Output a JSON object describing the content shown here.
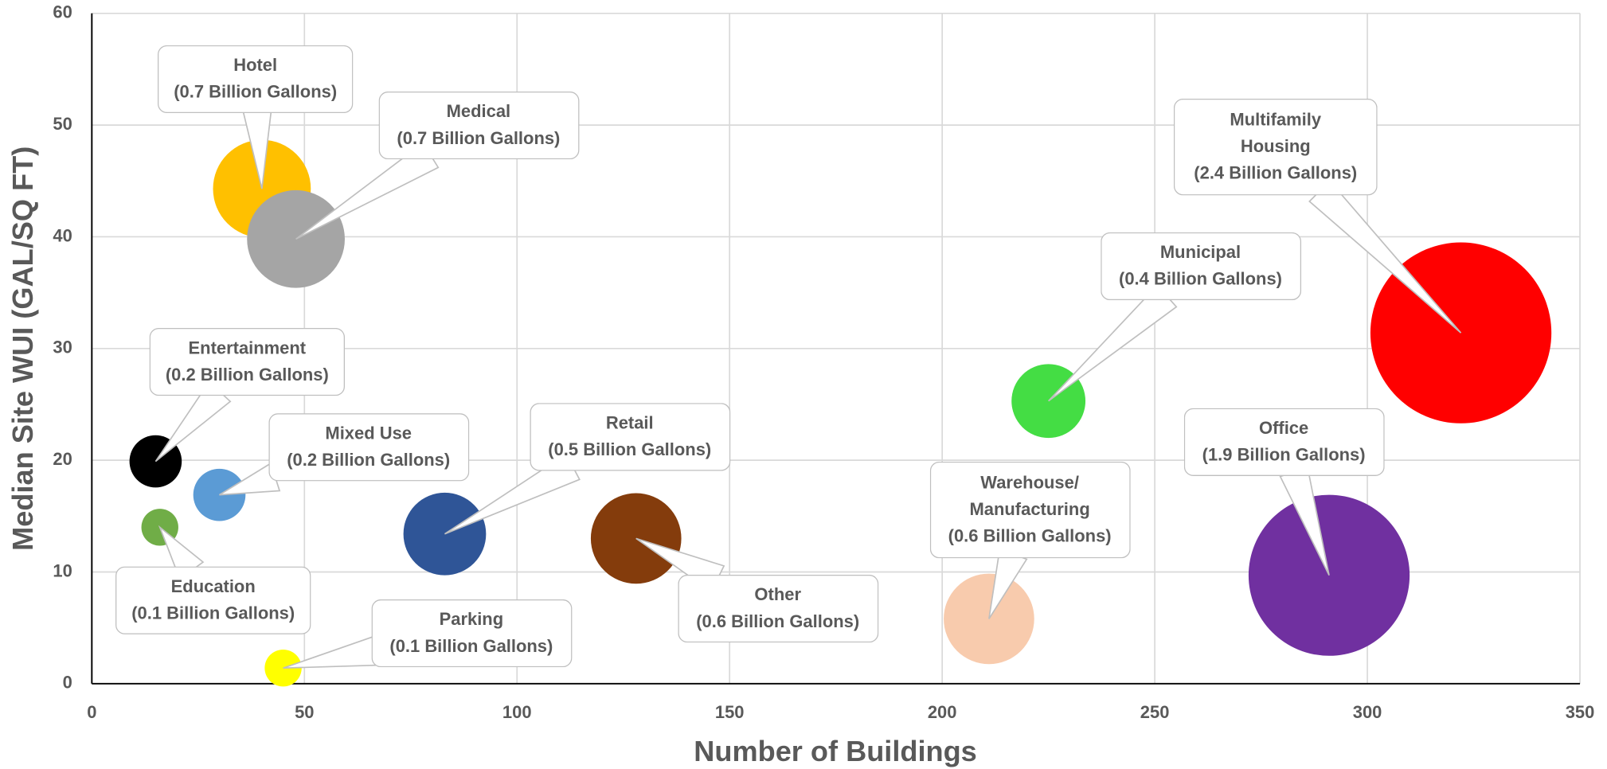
{
  "chart_data": {
    "type": "bubble",
    "x_label": "Number of Buildings",
    "y_label": "Median Site WUI (GAL/SQ FT)",
    "xlim": [
      0,
      350
    ],
    "xticks": [
      0,
      50,
      100,
      150,
      200,
      250,
      300,
      350
    ],
    "ylim": [
      0,
      60
    ],
    "yticks": [
      0,
      10,
      20,
      30,
      40,
      50,
      60
    ],
    "grid": true,
    "series": [
      {
        "name": "Hotel",
        "color": "#ffc000",
        "x": 40,
        "value": 44.3,
        "size": 0.7,
        "size_label": "(0.7 Billion Gallons)"
      },
      {
        "name": "Medical",
        "color": "#a5a5a5",
        "x": 48,
        "value": 39.8,
        "size": 0.7,
        "size_label": "(0.7 Billion Gallons)"
      },
      {
        "name": "Entertainment",
        "color": "#000000",
        "x": 15,
        "value": 19.9,
        "size": 0.2,
        "size_label": "(0.2 Billion Gallons)"
      },
      {
        "name": "Mixed Use",
        "color": "#5b9bd5",
        "x": 30,
        "value": 16.9,
        "size": 0.2,
        "size_label": "(0.2 Billion Gallons)"
      },
      {
        "name": "Education",
        "color": "#70ad47",
        "x": 16,
        "value": 14,
        "size": 0.1,
        "size_label": "(0.1 Billion Gallons)"
      },
      {
        "name": "Parking",
        "color": "#ffff00",
        "x": 45,
        "value": 1.4,
        "size": 0.1,
        "size_label": "(0.1 Billion Gallons)"
      },
      {
        "name": "Retail",
        "color": "#2f5597",
        "x": 83,
        "value": 13.4,
        "size": 0.5,
        "size_label": "(0.5 Billion Gallons)"
      },
      {
        "name": "Other",
        "color": "#843c0c",
        "x": 128,
        "value": 13,
        "size": 0.6,
        "size_label": "(0.6 Billion Gallons)"
      },
      {
        "name": "Municipal",
        "color": "#44dd44",
        "x": 225,
        "value": 25.3,
        "size": 0.4,
        "size_label": "(0.4 Billion Gallons)"
      },
      {
        "name": "Warehouse/ Manufacturing",
        "color": "#f8cbad",
        "x": 211,
        "value": 5.8,
        "size": 0.6,
        "size_label": "(0.6 Billion Gallons)"
      },
      {
        "name": "Office",
        "color": "#7030a0",
        "x": 291,
        "value": 9.7,
        "size": 1.9,
        "size_label": "(1.9 Billion Gallons)"
      },
      {
        "name": "Multifamily Housing",
        "color": "#ff0000",
        "x": 322,
        "value": 31.4,
        "size": 2.4,
        "size_label": "(2.4 Billion Gallons)"
      }
    ]
  }
}
